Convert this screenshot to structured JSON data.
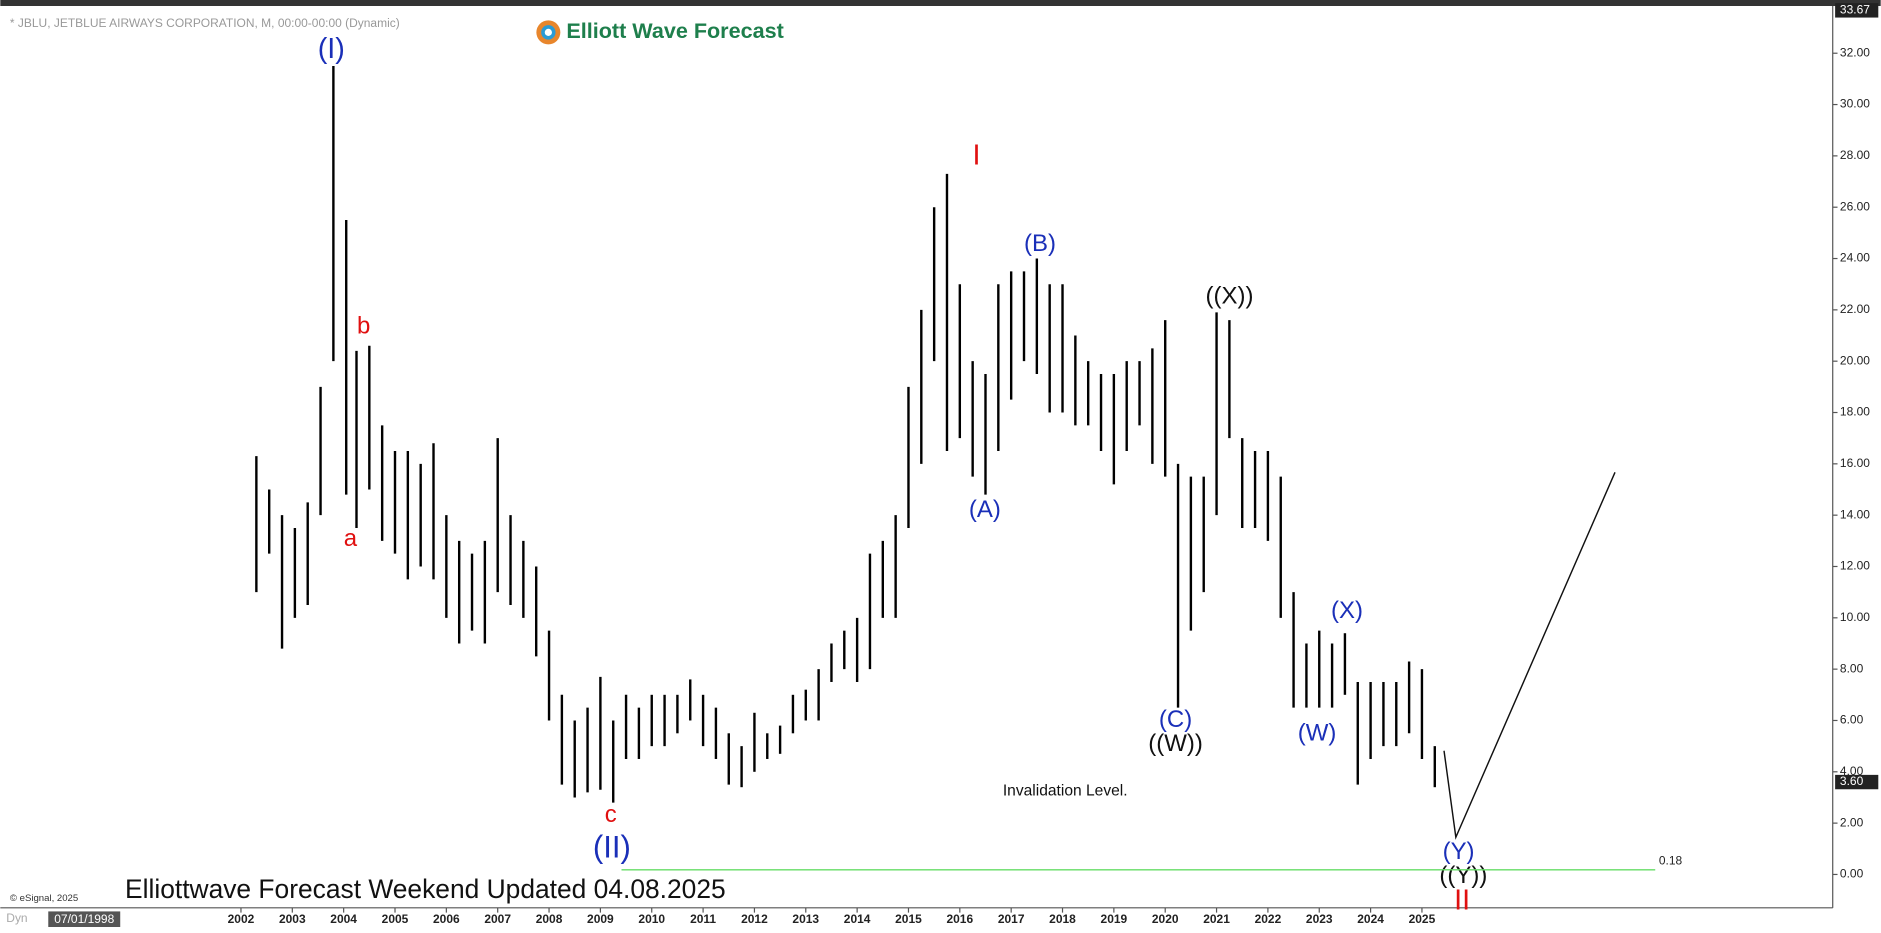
{
  "chart_data": {
    "type": "range-bar",
    "header": "* JBLU, JETBLUE AIRWAYS CORPORATION, M, 00:00-00:00 (Dynamic)",
    "logo": "Elliott Wave Forecast",
    "footer": "Elliottwave Forecast Weekend Updated 04.08.2025",
    "copyright": "© eSignal, 2025",
    "start_date": "07/01/1998",
    "mode": "Dyn",
    "note": "Invalidation Level.",
    "annotations": [
      "(I)",
      "b",
      "a",
      "c",
      "(II)",
      "I",
      "(B)",
      "(A)",
      "((X))",
      "(C)",
      "((W))",
      "(X)",
      "(W)",
      "(Y)",
      "((Y))",
      "II"
    ],
    "color": "#000000",
    "x": [
      2002.3,
      2002.55,
      2002.8,
      2003.05,
      2003.3,
      2003.55,
      2003.8,
      2004.05,
      2004.25,
      2004.5,
      2004.75,
      2005.0,
      2005.25,
      2005.5,
      2005.75,
      2006.0,
      2006.25,
      2006.5,
      2006.75,
      2007.0,
      2007.25,
      2007.5,
      2007.75,
      2008.0,
      2008.25,
      2008.5,
      2008.75,
      2009.0,
      2009.25,
      2009.5,
      2009.75,
      2010.0,
      2010.25,
      2010.5,
      2010.75,
      2011.0,
      2011.25,
      2011.5,
      2011.75,
      2012.0,
      2012.25,
      2012.5,
      2012.75,
      2013.0,
      2013.25,
      2013.5,
      2013.75,
      2014.0,
      2014.25,
      2014.5,
      2014.75,
      2015.0,
      2015.25,
      2015.5,
      2015.75,
      2016.0,
      2016.25,
      2016.5,
      2016.75,
      2017.0,
      2017.25,
      2017.5,
      2017.75,
      2018.0,
      2018.25,
      2018.5,
      2018.75,
      2019.0,
      2019.25,
      2019.5,
      2019.75,
      2020.0,
      2020.25,
      2020.5,
      2020.75,
      2021.0,
      2021.25,
      2021.5,
      2021.75,
      2022.0,
      2022.25,
      2022.5,
      2022.75,
      2023.0,
      2023.25,
      2023.5,
      2023.75,
      2024.0,
      2024.25,
      2024.5,
      2024.75,
      2025.0,
      2025.25
    ],
    "high": [
      16.3,
      15,
      14,
      13.5,
      14.5,
      19,
      31.5,
      25.5,
      20.4,
      20.6,
      17.5,
      16.5,
      16.5,
      16,
      16.8,
      14,
      13,
      12.5,
      13,
      17,
      14,
      13,
      12,
      9.5,
      7,
      6,
      6.5,
      7.7,
      6,
      7,
      6.5,
      7,
      7,
      7,
      7.6,
      7,
      6.5,
      5.5,
      5,
      6.3,
      5.5,
      5.8,
      7,
      7.2,
      8,
      9,
      9.5,
      10,
      12.5,
      13,
      14,
      19,
      22,
      26,
      27.3,
      23,
      20,
      19.5,
      23,
      23.5,
      23.5,
      24,
      23,
      23,
      21,
      20,
      19.5,
      19.5,
      20,
      20,
      20.5,
      21.6,
      16,
      15.5,
      15.5,
      21.9,
      21.6,
      17,
      16.5,
      16.5,
      15.5,
      11,
      9,
      9.5,
      9,
      9.4,
      7.5,
      7.5,
      7.5,
      7.5,
      8.3,
      8,
      5
    ],
    "low": [
      11,
      12.5,
      8.8,
      10,
      10.5,
      14,
      20,
      14.8,
      13.5,
      15,
      13,
      12.5,
      11.5,
      12,
      11.5,
      10,
      9,
      9.5,
      9,
      11,
      10.5,
      10,
      8.5,
      6,
      3.5,
      3,
      3.2,
      3.3,
      2.8,
      4.5,
      4.5,
      5,
      5,
      5.5,
      6,
      5,
      4.5,
      3.5,
      3.4,
      4,
      4.5,
      4.7,
      5.5,
      6,
      6,
      7.5,
      8,
      7.5,
      8,
      10,
      10,
      13.5,
      16,
      20,
      16.5,
      17,
      15.5,
      14.8,
      16.5,
      18.5,
      20,
      19.5,
      18,
      18,
      17.5,
      17.5,
      16.5,
      15.2,
      16.5,
      17.5,
      16,
      15.5,
      6.5,
      9.5,
      11,
      14,
      17,
      13.5,
      13.5,
      13,
      10,
      6.5,
      6.5,
      6.5,
      6.5,
      7,
      3.5,
      4.5,
      5,
      5,
      5.5,
      4.5,
      3.4
    ],
    "projection": {
      "x": [
        2025.43,
        2025.66,
        2028.76
      ],
      "values": [
        4.82,
        1.45,
        15.67
      ]
    },
    "level": 0.18,
    "level_color": "#66dd66",
    "last_price": {
      "value": 3.6,
      "label": "3.60"
    },
    "max_price": {
      "value": 33.67,
      "label": "33.67"
    },
    "xlim": [
      1997.5,
      2033
    ],
    "ylim": [
      -1.3,
      33.7
    ],
    "xticks": [
      2002,
      2003,
      2004,
      2005,
      2006,
      2007,
      2008,
      2009,
      2010,
      2011,
      2012,
      2013,
      2014,
      2015,
      2016,
      2017,
      2018,
      2019,
      2020,
      2021,
      2022,
      2023,
      2024,
      2025
    ],
    "yticks": [
      {
        "value": 0,
        "label": "0.00"
      },
      {
        "value": 2,
        "label": "2.00"
      },
      {
        "value": 4,
        "label": "4.00"
      },
      {
        "value": 6,
        "label": "6.00"
      },
      {
        "value": 8,
        "label": "8.00"
      },
      {
        "value": 10,
        "label": "10.00"
      },
      {
        "value": 12,
        "label": "12.00"
      },
      {
        "value": 14,
        "label": "14.00"
      },
      {
        "value": 16,
        "label": "16.00"
      },
      {
        "value": 18,
        "label": "18.00"
      },
      {
        "value": 20,
        "label": "20.00"
      },
      {
        "value": 22,
        "label": "22.00"
      },
      {
        "value": 24,
        "label": "24.00"
      },
      {
        "value": 26,
        "label": "26.00"
      },
      {
        "value": 28,
        "label": "28.00"
      },
      {
        "value": 30,
        "label": "30.00"
      },
      {
        "value": 32,
        "label": "32.00"
      }
    ]
  }
}
